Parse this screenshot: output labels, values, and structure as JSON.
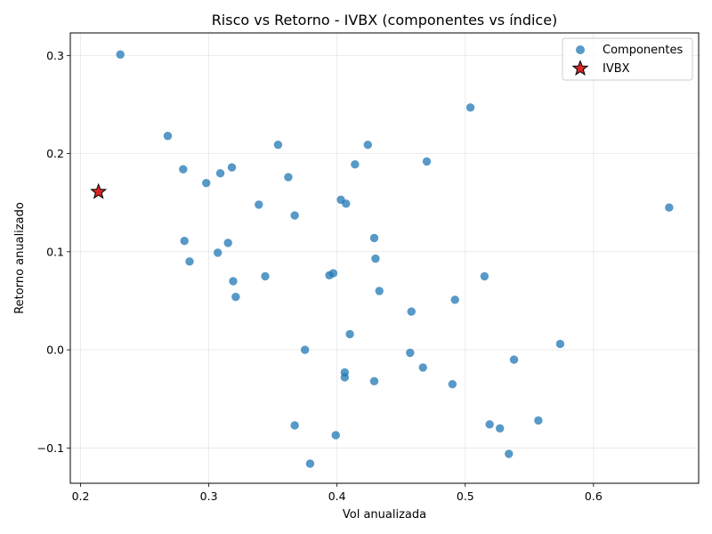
{
  "chart_data": {
    "type": "scatter",
    "title": "Risco vs Retorno - IVBX (componentes vs índice)",
    "xlabel": "Vol anualizada",
    "ylabel": "Retorno anualizado",
    "xlim": [
      0.192,
      0.682
    ],
    "ylim": [
      -0.136,
      0.323
    ],
    "xticks": [
      0.2,
      0.3,
      0.4,
      0.5,
      0.6
    ],
    "xtick_labels": [
      "0.2",
      "0.3",
      "0.4",
      "0.5",
      "0.6"
    ],
    "yticks": [
      -0.1,
      0.0,
      0.1,
      0.2,
      0.3
    ],
    "ytick_labels": [
      "−0.1",
      "0.0",
      "0.1",
      "0.2",
      "0.3"
    ],
    "grid": true,
    "legend_position": "top-right",
    "series": [
      {
        "name": "Componentes",
        "marker": "circle",
        "color": "#1f77b4",
        "points": [
          {
            "x": 0.231,
            "y": 0.301
          },
          {
            "x": 0.268,
            "y": 0.218
          },
          {
            "x": 0.28,
            "y": 0.184
          },
          {
            "x": 0.298,
            "y": 0.17
          },
          {
            "x": 0.309,
            "y": 0.18
          },
          {
            "x": 0.318,
            "y": 0.186
          },
          {
            "x": 0.281,
            "y": 0.111
          },
          {
            "x": 0.285,
            "y": 0.09
          },
          {
            "x": 0.307,
            "y": 0.099
          },
          {
            "x": 0.315,
            "y": 0.109
          },
          {
            "x": 0.319,
            "y": 0.07
          },
          {
            "x": 0.321,
            "y": 0.054
          },
          {
            "x": 0.339,
            "y": 0.148
          },
          {
            "x": 0.344,
            "y": 0.075
          },
          {
            "x": 0.354,
            "y": 0.209
          },
          {
            "x": 0.362,
            "y": 0.176
          },
          {
            "x": 0.367,
            "y": 0.137
          },
          {
            "x": 0.375,
            "y": 0.0
          },
          {
            "x": 0.367,
            "y": -0.077
          },
          {
            "x": 0.379,
            "y": -0.116
          },
          {
            "x": 0.394,
            "y": 0.076
          },
          {
            "x": 0.397,
            "y": 0.078
          },
          {
            "x": 0.399,
            "y": -0.087
          },
          {
            "x": 0.403,
            "y": 0.153
          },
          {
            "x": 0.407,
            "y": 0.149
          },
          {
            "x": 0.406,
            "y": -0.023
          },
          {
            "x": 0.406,
            "y": -0.028
          },
          {
            "x": 0.41,
            "y": 0.016
          },
          {
            "x": 0.414,
            "y": 0.189
          },
          {
            "x": 0.424,
            "y": 0.209
          },
          {
            "x": 0.429,
            "y": 0.114
          },
          {
            "x": 0.43,
            "y": 0.093
          },
          {
            "x": 0.429,
            "y": -0.032
          },
          {
            "x": 0.433,
            "y": 0.06
          },
          {
            "x": 0.458,
            "y": 0.039
          },
          {
            "x": 0.457,
            "y": -0.003
          },
          {
            "x": 0.467,
            "y": -0.018
          },
          {
            "x": 0.47,
            "y": 0.192
          },
          {
            "x": 0.49,
            "y": -0.035
          },
          {
            "x": 0.492,
            "y": 0.051
          },
          {
            "x": 0.504,
            "y": 0.247
          },
          {
            "x": 0.515,
            "y": 0.075
          },
          {
            "x": 0.519,
            "y": -0.076
          },
          {
            "x": 0.527,
            "y": -0.08
          },
          {
            "x": 0.534,
            "y": -0.106
          },
          {
            "x": 0.538,
            "y": -0.01
          },
          {
            "x": 0.557,
            "y": -0.072
          },
          {
            "x": 0.574,
            "y": 0.006
          },
          {
            "x": 0.659,
            "y": 0.145
          }
        ]
      },
      {
        "name": "IVBX",
        "marker": "star",
        "color": "#d62728",
        "points": [
          {
            "x": 0.214,
            "y": 0.161
          }
        ]
      }
    ]
  }
}
